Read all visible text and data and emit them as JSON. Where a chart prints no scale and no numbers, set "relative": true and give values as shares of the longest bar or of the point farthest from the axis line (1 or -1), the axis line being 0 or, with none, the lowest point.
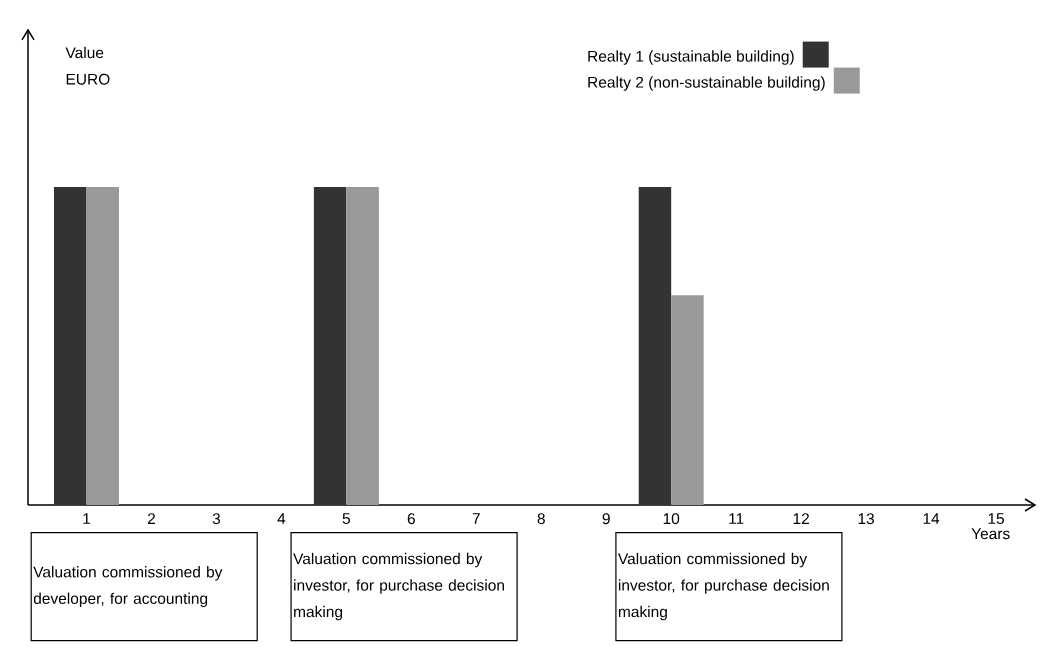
{
  "chart_data": {
    "type": "bar",
    "relative": true,
    "xlabel": "Years",
    "categories": [
      "1",
      "2",
      "3",
      "4",
      "5",
      "6",
      "7",
      "8",
      "9",
      "10",
      "11",
      "12",
      "13",
      "14",
      "15"
    ],
    "series": [
      {
        "name": "Realty 1 (sustainable building)",
        "color": "#333333",
        "values": [
          1,
          null,
          null,
          null,
          1,
          null,
          null,
          null,
          null,
          1,
          null,
          null,
          null,
          null,
          null
        ]
      },
      {
        "name": "Realty 2 (non-sustainable building)",
        "color": "#999999",
        "values": [
          1,
          null,
          null,
          null,
          1,
          null,
          null,
          null,
          null,
          0.66,
          null,
          null,
          null,
          null,
          null
        ]
      }
    ],
    "legend": "top right",
    "grid": false,
    "annotations": [
      "Value EURO",
      "Valuation commissioned by developer, for accounting",
      "Valuation commissioned by investor, for purchase decision making",
      "Valuation commissioned by investor, for purchase decision making"
    ]
  }
}
